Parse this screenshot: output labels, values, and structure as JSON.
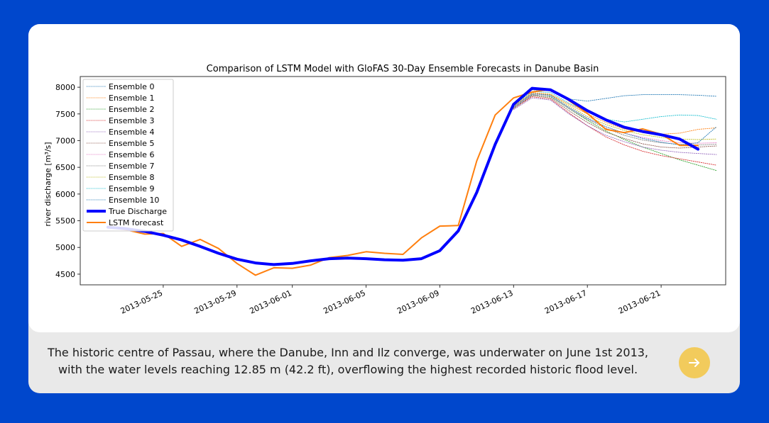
{
  "page": {
    "background": "#0047cc",
    "card_background": "#e9e9e9",
    "button_color": "#f2cb5c"
  },
  "caption": {
    "line1": "The historic centre of Passau, where the Danube, Inn and Ilz converge, was underwater on June 1st 2013,",
    "line2": "with the water levels reaching 12.85 m (42.2 ft), overflowing the highest recorded historic flood level."
  },
  "next_button": {
    "icon": "arrow-right-icon"
  },
  "chart_data": {
    "type": "line",
    "title": "Comparison of LSTM Model with GloFAS 30-Day Ensemble Forecasts in Danube Basin",
    "xlabel": "",
    "ylabel": "river discharge [m³/s]",
    "ylim": [
      4300,
      8200
    ],
    "xlim": [
      -1.5,
      33.5
    ],
    "yticks": [
      4500,
      5000,
      5500,
      6000,
      6500,
      7000,
      7500,
      8000
    ],
    "xticks": [
      {
        "day": 3,
        "label": "2013-05-25"
      },
      {
        "day": 7,
        "label": "2013-05-29"
      },
      {
        "day": 10,
        "label": "2013-06-01"
      },
      {
        "day": 14,
        "label": "2013-06-05"
      },
      {
        "day": 18,
        "label": "2013-06-09"
      },
      {
        "day": 22,
        "label": "2013-06-13"
      },
      {
        "day": 26,
        "label": "2013-06-17"
      },
      {
        "day": 30,
        "label": "2013-06-21"
      }
    ],
    "legend_position": "top-left",
    "x_days": [
      0,
      1,
      2,
      3,
      4,
      5,
      6,
      7,
      8,
      9,
      10,
      11,
      12,
      13,
      14,
      15,
      16,
      17,
      18,
      19,
      20,
      21,
      22,
      23,
      24,
      25,
      26,
      27,
      28,
      29,
      30,
      31,
      32
    ],
    "series": [
      {
        "name": "True Discharge",
        "color": "#0000ff",
        "style": "solid",
        "width": 4,
        "values": [
          5380,
          5350,
          5300,
          5230,
          5140,
          5020,
          4890,
          4780,
          4710,
          4680,
          4700,
          4750,
          4790,
          4800,
          4790,
          4770,
          4760,
          4790,
          4940,
          5310,
          6030,
          6930,
          7680,
          7980,
          7950,
          7770,
          7560,
          7390,
          7250,
          7170,
          7110,
          7030,
          6840
        ]
      },
      {
        "name": "LSTM forecast",
        "color": "#ff7f0e",
        "style": "solid",
        "width": 2,
        "values": [
          5380,
          5330,
          5250,
          5260,
          5020,
          5150,
          4980,
          4700,
          4480,
          4620,
          4610,
          4670,
          4810,
          4850,
          4920,
          4890,
          4870,
          5180,
          5400,
          5410,
          6620,
          7480,
          7800,
          7910,
          7960,
          7750,
          7510,
          7210,
          7150,
          7220,
          7120,
          6910,
          6910
        ]
      },
      {
        "name": "Ensemble 0",
        "color": "#1f77b4",
        "style": "dotted",
        "width": 1,
        "start": 22,
        "values": [
          7680,
          7950,
          7930,
          7780,
          7740,
          7790,
          7840,
          7860,
          7860,
          7860,
          7850,
          7830
        ]
      },
      {
        "name": "Ensemble 1",
        "color": "#ff7f0e",
        "style": "dotted",
        "width": 1,
        "start": 22,
        "values": [
          7650,
          7900,
          7870,
          7680,
          7500,
          7340,
          7220,
          7150,
          7120,
          7140,
          7210,
          7240
        ]
      },
      {
        "name": "Ensemble 2",
        "color": "#2ca02c",
        "style": "dotted",
        "width": 1,
        "start": 22,
        "values": [
          7620,
          7860,
          7820,
          7600,
          7380,
          7180,
          7020,
          6880,
          6760,
          6640,
          6540,
          6440
        ]
      },
      {
        "name": "Ensemble 3",
        "color": "#d62728",
        "style": "dotted",
        "width": 1,
        "start": 22,
        "values": [
          7600,
          7820,
          7780,
          7520,
          7280,
          7070,
          6920,
          6800,
          6720,
          6660,
          6600,
          6540
        ]
      },
      {
        "name": "Ensemble 4",
        "color": "#9467bd",
        "style": "dotted",
        "width": 1,
        "start": 22,
        "values": [
          7580,
          7800,
          7760,
          7500,
          7280,
          7100,
          6980,
          6880,
          6820,
          6780,
          6760,
          6740
        ]
      },
      {
        "name": "Ensemble 5",
        "color": "#8c564b",
        "style": "dotted",
        "width": 1,
        "start": 22,
        "values": [
          7600,
          7840,
          7800,
          7560,
          7340,
          7160,
          7040,
          6940,
          6880,
          6860,
          6880,
          6900
        ]
      },
      {
        "name": "Ensemble 6",
        "color": "#e377c2",
        "style": "dotted",
        "width": 1,
        "start": 22,
        "values": [
          7620,
          7870,
          7850,
          7620,
          7420,
          7260,
          7140,
          7060,
          7000,
          6960,
          6950,
          6960
        ]
      },
      {
        "name": "Ensemble 7",
        "color": "#7f7f7f",
        "style": "dotted",
        "width": 1,
        "start": 22,
        "values": [
          7610,
          7850,
          7830,
          7600,
          7400,
          7230,
          7100,
          7010,
          6960,
          6930,
          6920,
          6930
        ]
      },
      {
        "name": "Ensemble 8",
        "color": "#bcbd22",
        "style": "dotted",
        "width": 1,
        "start": 22,
        "values": [
          7640,
          7880,
          7860,
          7650,
          7450,
          7300,
          7190,
          7110,
          7060,
          7030,
          7020,
          7030
        ]
      },
      {
        "name": "Ensemble 9",
        "color": "#17becf",
        "style": "dotted",
        "width": 1,
        "start": 22,
        "values": [
          7660,
          7920,
          7900,
          7700,
          7540,
          7400,
          7350,
          7400,
          7450,
          7480,
          7470,
          7400
        ]
      },
      {
        "name": "Ensemble 10",
        "color": "#1f77b4",
        "style": "dotted",
        "width": 1,
        "start": 22,
        "values": [
          7630,
          7880,
          7850,
          7620,
          7420,
          7260,
          7140,
          7040,
          6970,
          6920,
          6960,
          7260
        ]
      }
    ],
    "legend": [
      {
        "label": "Ensemble 0",
        "color": "#1f77b4",
        "style": "dotted"
      },
      {
        "label": "Ensemble 1",
        "color": "#ff7f0e",
        "style": "dotted"
      },
      {
        "label": "Ensemble 2",
        "color": "#2ca02c",
        "style": "dotted"
      },
      {
        "label": "Ensemble 3",
        "color": "#d62728",
        "style": "dotted"
      },
      {
        "label": "Ensemble 4",
        "color": "#9467bd",
        "style": "dotted"
      },
      {
        "label": "Ensemble 5",
        "color": "#8c564b",
        "style": "dotted"
      },
      {
        "label": "Ensemble 6",
        "color": "#e377c2",
        "style": "dotted"
      },
      {
        "label": "Ensemble 7",
        "color": "#7f7f7f",
        "style": "dotted"
      },
      {
        "label": "Ensemble 8",
        "color": "#bcbd22",
        "style": "dotted"
      },
      {
        "label": "Ensemble 9",
        "color": "#17becf",
        "style": "dotted"
      },
      {
        "label": "Ensemble 10",
        "color": "#1f77b4",
        "style": "dotted"
      },
      {
        "label": "True Discharge",
        "color": "#0000ff",
        "style": "solid-thick"
      },
      {
        "label": "LSTM forecast",
        "color": "#ff7f0e",
        "style": "solid"
      }
    ]
  }
}
